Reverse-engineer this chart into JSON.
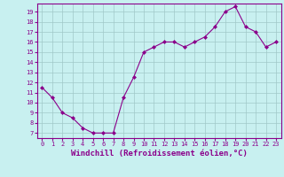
{
  "x": [
    0,
    1,
    2,
    3,
    4,
    5,
    6,
    7,
    8,
    9,
    10,
    11,
    12,
    13,
    14,
    15,
    16,
    17,
    18,
    19,
    20,
    21,
    22,
    23
  ],
  "y": [
    11.5,
    10.5,
    9.0,
    8.5,
    7.5,
    7.0,
    7.0,
    7.0,
    10.5,
    12.5,
    15.0,
    15.5,
    16.0,
    16.0,
    15.5,
    16.0,
    16.5,
    17.5,
    19.0,
    19.5,
    17.5,
    17.0,
    15.5,
    16.0
  ],
  "line_color": "#8B008B",
  "marker": "D",
  "marker_size": 2,
  "bg_color": "#c8f0f0",
  "grid_color": "#a0c8c8",
  "xlabel": "Windchill (Refroidissement éolien,°C)",
  "xlabel_color": "#8B008B",
  "xlim": [
    -0.5,
    23.5
  ],
  "ylim": [
    6.5,
    19.8
  ],
  "yticks": [
    7,
    8,
    9,
    10,
    11,
    12,
    13,
    14,
    15,
    16,
    17,
    18,
    19
  ],
  "xticks": [
    0,
    1,
    2,
    3,
    4,
    5,
    6,
    7,
    8,
    9,
    10,
    11,
    12,
    13,
    14,
    15,
    16,
    17,
    18,
    19,
    20,
    21,
    22,
    23
  ],
  "tick_color": "#8B008B",
  "tick_fontsize": 5.0,
  "xlabel_fontsize": 6.5
}
